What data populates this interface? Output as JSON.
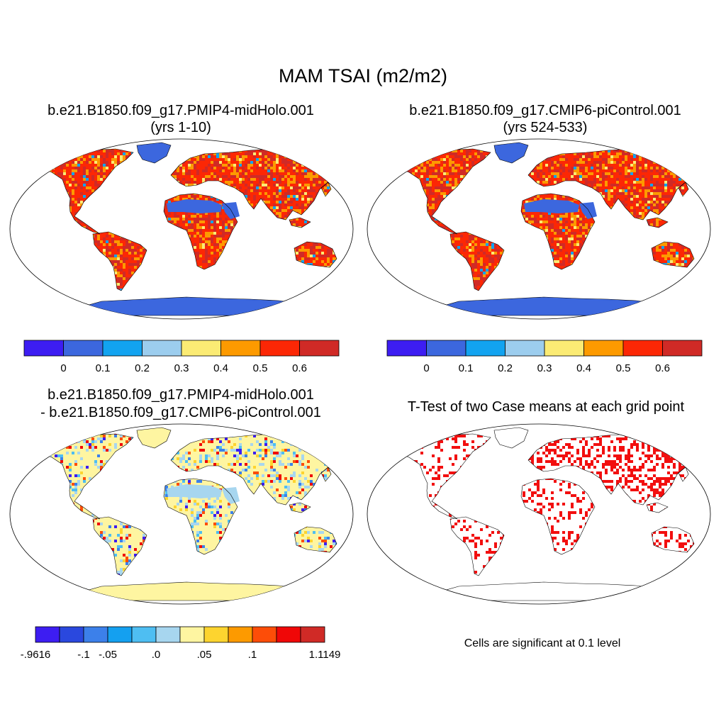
{
  "title": "MAM TSAI (m2/m2)",
  "panels": [
    {
      "id": "p1",
      "title": "b.e21.B1850.f09_g17.PMIP4-midHolo.001",
      "subtitle": "(yrs 1-10)"
    },
    {
      "id": "p2",
      "title": "b.e21.B1850.f09_g17.CMIP6-piControl.001",
      "subtitle": "(yrs 524-533)"
    },
    {
      "id": "p3",
      "title": "b.e21.B1850.f09_g17.PMIP4-midHolo.001",
      "subtitle": "- b.e21.B1850.f09_g17.CMIP6-piControl.001"
    },
    {
      "id": "p4",
      "title": "T-Test of two Case means at each grid point",
      "note": "Cells are significant at 0.1 level"
    }
  ],
  "colorbars": {
    "absolute": {
      "colors": [
        "#3d1df2",
        "#3c67de",
        "#12a3f0",
        "#9ccdee",
        "#fbeb74",
        "#fd9a00",
        "#fc2705",
        "#d02a26"
      ],
      "labels": [
        "0",
        "0.1",
        "0.2",
        "0.3",
        "0.4",
        "0.5",
        "0.6"
      ]
    },
    "difference": {
      "colors": [
        "#3d1df2",
        "#2a48de",
        "#3c80ea",
        "#14a0f0",
        "#4ebef2",
        "#a7d6ef",
        "#fef5a1",
        "#fdd42f",
        "#fd9a00",
        "#fd4d08",
        "#f00707",
        "#d02a26"
      ],
      "labels": [
        "-.9616",
        "-.1",
        "-.05",
        ".0",
        ".05",
        ".1",
        "1.1149"
      ]
    }
  },
  "map_colors": {
    "ocean": "#ffffff",
    "coast": "#000000",
    "significant": "#f20f0f"
  }
}
